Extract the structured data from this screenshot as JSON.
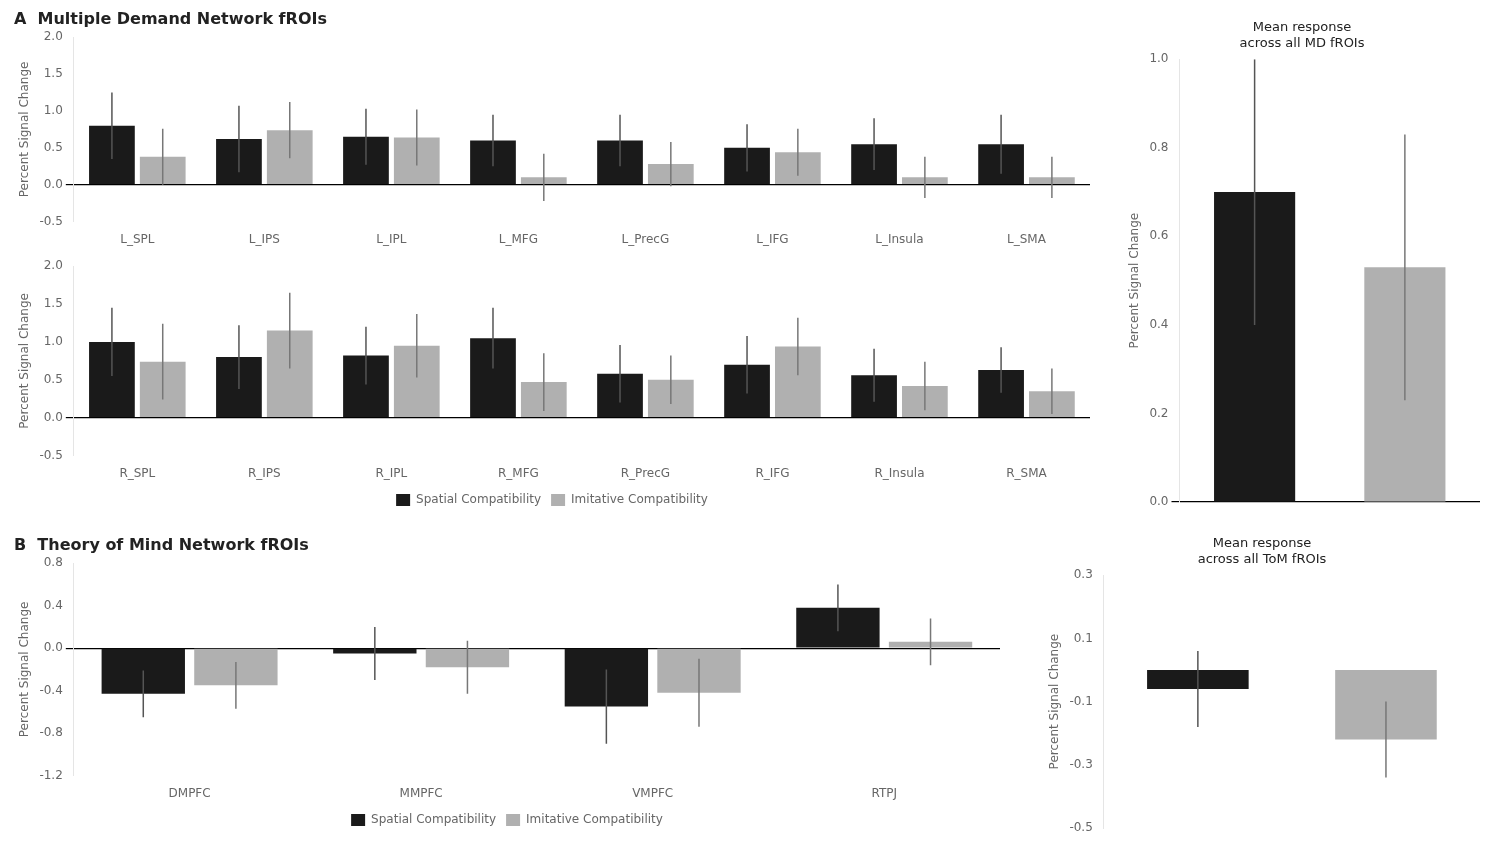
{
  "chart_data": [
    {
      "type": "bar",
      "title": "A  Multiple Demand Network fROIs",
      "categories": [
        "L_SPL",
        "L_IPS",
        "L_IPL",
        "L_MFG",
        "L_PrecG",
        "L_IFG",
        "L_Insula",
        "L_SMA"
      ],
      "series": [
        {
          "name": "Spatial Compatibility",
          "color": "#1a1a1a",
          "values": [
            0.8,
            0.62,
            0.65,
            0.6,
            0.6,
            0.5,
            0.55,
            0.55
          ],
          "errors": [
            0.45,
            0.45,
            0.38,
            0.35,
            0.35,
            0.32,
            0.35,
            0.4
          ]
        },
        {
          "name": "Imitative Compatibility",
          "color": "#b0b0b0",
          "values": [
            0.38,
            0.74,
            0.64,
            0.1,
            0.28,
            0.44,
            0.1,
            0.1
          ],
          "errors": [
            0.38,
            0.38,
            0.38,
            0.32,
            0.3,
            0.32,
            0.28,
            0.28
          ]
        }
      ],
      "ylabel": "Percent Signal Change",
      "ylim": [
        -0.5,
        2.0
      ],
      "yticks": [
        -0.5,
        {
          "value": 0,
          "label": "0.0"
        },
        0.5,
        {
          "value": 1.0,
          "label": "1.0"
        },
        1.5,
        {
          "value": 2.0,
          "label": "2.0"
        }
      ],
      "grid": false
    },
    {
      "type": "bar",
      "categories": [
        "R_SPL",
        "R_IPS",
        "R_IPL",
        "R_MFG",
        "R_PrecG",
        "R_IFG",
        "R_Insula",
        "R_SMA"
      ],
      "series": [
        {
          "name": "Spatial Compatibility",
          "color": "#1a1a1a",
          "values": [
            1.0,
            0.8,
            0.82,
            1.05,
            0.58,
            0.7,
            0.56,
            0.63
          ],
          "errors": [
            0.45,
            0.42,
            0.38,
            0.4,
            0.38,
            0.38,
            0.35,
            0.3
          ]
        },
        {
          "name": "Imitative Compatibility",
          "color": "#b0b0b0",
          "values": [
            0.74,
            1.15,
            0.95,
            0.47,
            0.5,
            0.94,
            0.42,
            0.35
          ],
          "errors": [
            0.5,
            0.5,
            0.42,
            0.38,
            0.32,
            0.38,
            0.32,
            0.3
          ]
        }
      ],
      "ylabel": "Percent Signal Change",
      "ylim": [
        -0.5,
        2.0
      ],
      "yticks": [
        -0.5,
        {
          "value": 0,
          "label": "0.0"
        },
        0.5,
        {
          "value": 1.0,
          "label": "1.0"
        },
        1.5,
        {
          "value": 2.0,
          "label": "2.0"
        }
      ],
      "grid": false,
      "legend": "bottom"
    },
    {
      "type": "bar",
      "title": "Mean response\nacross all MD fROIs",
      "categories": [
        null,
        null
      ],
      "values": [
        0.7,
        0.53
      ],
      "errors": [
        0.3,
        0.3
      ],
      "colors": [
        "#1a1a1a",
        "#b0b0b0"
      ],
      "ylabel": "Percent Signal Change",
      "ylim": [
        0,
        1.0
      ],
      "yticks": [
        {
          "value": 0,
          "label": "0.0"
        },
        0.2,
        0.4,
        0.6,
        0.8,
        {
          "value": 1.0,
          "label": "1.0"
        }
      ],
      "grid": false,
      "tick_labels": "y"
    },
    {
      "type": "bar",
      "title": "B  Theory of Mind Network fROIs",
      "categories": [
        "DMPFC",
        "MMPFC",
        "VMPFC",
        "RTPJ"
      ],
      "series": [
        {
          "name": "Spatial Compatibility",
          "color": "#1a1a1a",
          "values": [
            -0.43,
            -0.05,
            -0.55,
            0.38
          ],
          "errors": [
            0.22,
            0.25,
            0.35,
            0.22
          ]
        },
        {
          "name": "Imitative Compatibility",
          "color": "#b0b0b0",
          "values": [
            -0.35,
            -0.18,
            -0.42,
            0.06
          ],
          "errors": [
            0.22,
            0.25,
            0.32,
            0.22
          ]
        }
      ],
      "ylabel": "Percent Signal Change",
      "ylim": [
        -1.2,
        0.8
      ],
      "yticks": [
        -1.2,
        -0.8,
        -0.4,
        {
          "value": 0,
          "label": "0.0"
        },
        0.4,
        0.8
      ],
      "grid": false,
      "legend": "bottom"
    },
    {
      "type": "bar",
      "title": "Mean response\nacross all ToM fROIs",
      "categories": [
        null,
        null
      ],
      "values": [
        -0.06,
        -0.22
      ],
      "errors": [
        0.12,
        0.12
      ],
      "colors": [
        "#1a1a1a",
        "#b0b0b0"
      ],
      "ylabel": "Percent Signal Change",
      "ylim": [
        -0.5,
        0.3
      ],
      "yticks": [
        -0.5,
        -0.3,
        -0.1,
        0.1,
        0.3
      ],
      "grid": false,
      "tick_labels": "y"
    }
  ]
}
